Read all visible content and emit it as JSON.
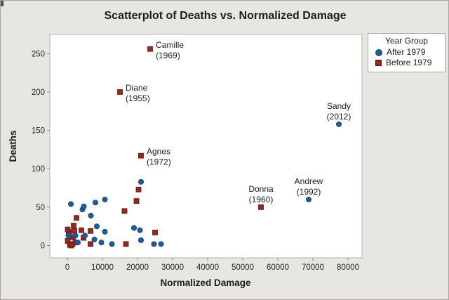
{
  "chart_data": {
    "type": "scatter",
    "title": "Scatterplot of Deaths vs. Normalized Damage",
    "xlabel": "Normalized Damage",
    "ylabel": "Deaths",
    "xlim": [
      -5000,
      84000
    ],
    "ylim": [
      -16,
      275
    ],
    "xticks": [
      0,
      10000,
      20000,
      30000,
      40000,
      50000,
      60000,
      70000,
      80000
    ],
    "yticks": [
      0,
      50,
      100,
      150,
      200,
      250
    ],
    "grid": false,
    "legend_position": "top-right",
    "background_color": "#e8e6e3",
    "plot_background": "#ffffff",
    "frame_color": "#b5b2ae",
    "tick_color": "#8a8a8a",
    "legend": {
      "title": "Year Group"
    },
    "series": [
      {
        "name": "After 1979",
        "key": "after-1979",
        "marker": "circle",
        "color": "#1f5c9e",
        "edge_color": "#143f70",
        "points": [
          [
            4300,
            47
          ],
          [
            6700,
            39
          ],
          [
            8400,
            25
          ],
          [
            300,
            13
          ],
          [
            2300,
            13
          ],
          [
            5000,
            13
          ],
          [
            7700,
            8
          ],
          [
            3000,
            4
          ],
          [
            10700,
            60
          ],
          [
            8000,
            56
          ],
          [
            1000,
            54
          ],
          [
            4700,
            51
          ],
          [
            10700,
            18
          ],
          [
            12700,
            2
          ],
          [
            9700,
            4
          ],
          [
            19000,
            23
          ],
          [
            20700,
            20
          ],
          [
            21000,
            7
          ],
          [
            24700,
            2
          ],
          [
            26700,
            2
          ],
          [
            21000,
            83
          ],
          [
            68800,
            60
          ],
          [
            77400,
            158
          ]
        ]
      },
      {
        "name": "Before 1979",
        "key": "before-1979",
        "marker": "square",
        "color": "#942823",
        "edge_color": "#5f1713",
        "points": [
          [
            2600,
            36
          ],
          [
            1800,
            26
          ],
          [
            400,
            18
          ],
          [
            2000,
            19
          ],
          [
            4000,
            20
          ],
          [
            6600,
            19
          ],
          [
            100,
            21
          ],
          [
            1600,
            11
          ],
          [
            4600,
            10
          ],
          [
            6600,
            2
          ],
          [
            100,
            6
          ],
          [
            700,
            1
          ],
          [
            1500,
            2
          ],
          [
            2300,
            4
          ],
          [
            1100,
            0
          ],
          [
            16300,
            45
          ],
          [
            19700,
            58
          ],
          [
            20300,
            73
          ],
          [
            25000,
            17
          ],
          [
            16700,
            2
          ],
          [
            23600,
            256
          ],
          [
            15000,
            200
          ],
          [
            21000,
            117
          ],
          [
            55200,
            50
          ]
        ]
      }
    ],
    "annotations": [
      {
        "name": "Camille",
        "year": "(1969)",
        "x": 23600,
        "y": 256,
        "anchor": "right"
      },
      {
        "name": "Diane",
        "year": "(1955)",
        "x": 15000,
        "y": 200,
        "anchor": "right"
      },
      {
        "name": "Agnes",
        "year": "(1972)",
        "x": 21000,
        "y": 117,
        "anchor": "right"
      },
      {
        "name": "Donna",
        "year": "(1960)",
        "x": 55200,
        "y": 50,
        "anchor": "above"
      },
      {
        "name": "Andrew",
        "year": "(1992)",
        "x": 68800,
        "y": 60,
        "anchor": "above"
      },
      {
        "name": "Sandy",
        "year": "(2012)",
        "x": 77400,
        "y": 158,
        "anchor": "above"
      }
    ]
  }
}
